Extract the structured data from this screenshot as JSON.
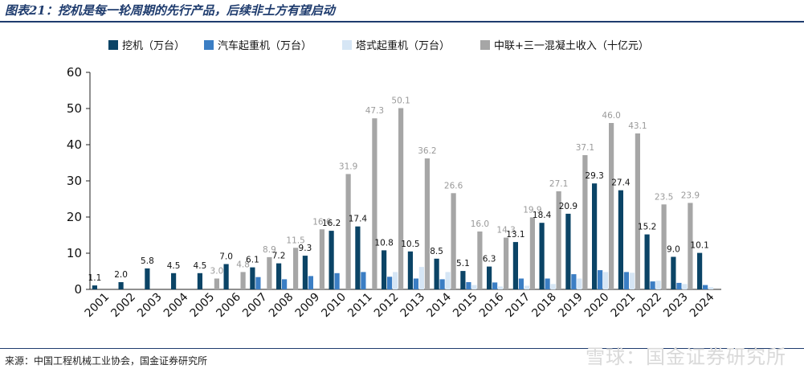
{
  "title": "图表21：挖机是每一轮周期的先行产品，后续非土方有望启动",
  "source": "来源：中国工程机械工业协会，国金证券研究所",
  "watermark": "雪球：国金证券研究所",
  "chart_data": {
    "type": "bar",
    "categories": [
      "2001",
      "2002",
      "2003",
      "2004",
      "2005",
      "2006",
      "2007",
      "2008",
      "2009",
      "2010",
      "2011",
      "2012",
      "2013",
      "2014",
      "2015",
      "2016",
      "2017",
      "2018",
      "2019",
      "2020",
      "2021",
      "2022",
      "2023",
      "2024"
    ],
    "ylim": [
      0,
      60
    ],
    "yticks": [
      0,
      10,
      20,
      30,
      40,
      50,
      60
    ],
    "grid": false,
    "legend_position": "top",
    "series": [
      {
        "name": "挖机（万台）",
        "color": "#0b4466",
        "label_color": "#111111",
        "values": [
          1.1,
          2.0,
          5.8,
          4.5,
          4.5,
          7.0,
          6.1,
          7.2,
          9.3,
          16.2,
          17.4,
          10.8,
          10.5,
          8.5,
          5.1,
          6.3,
          13.1,
          18.4,
          20.9,
          29.3,
          27.4,
          15.2,
          9.0,
          10.1
        ],
        "labels": [
          "1.1",
          "2.0",
          "5.8",
          "4.5",
          "4.5",
          "7.0",
          "6.1",
          "7.2",
          "9.3",
          "16.2",
          "17.4",
          "10.8",
          "10.5",
          "8.5",
          "5.1",
          "6.3",
          "13.1",
          "18.4",
          "20.9",
          "29.3",
          "27.4",
          "15.2",
          "9.0",
          "10.1"
        ]
      },
      {
        "name": "汽车起重机（万台）",
        "color": "#3b7ec4",
        "label_color": null,
        "values": [
          0,
          0,
          0,
          0,
          0,
          0,
          3.4,
          2.8,
          3.7,
          4.5,
          4.8,
          3.5,
          3.0,
          2.8,
          2.0,
          1.9,
          3.0,
          3.0,
          4.2,
          5.3,
          4.8,
          2.2,
          1.8,
          1.2
        ],
        "labels": []
      },
      {
        "name": "塔式起重机（万台）",
        "color": "#d6e6f5",
        "label_color": null,
        "values": [
          0,
          0,
          0,
          0,
          0,
          0,
          0,
          0,
          0,
          0,
          0,
          4.8,
          6.2,
          4.8,
          1.2,
          0.8,
          1.0,
          1.5,
          3.0,
          4.8,
          4.6,
          2.4,
          1.5,
          0.6
        ],
        "labels": []
      },
      {
        "name": "中联+三一混凝土收入（十亿元）",
        "color": "#a6a6a6",
        "label_color": "#9a9a9a",
        "values": [
          0,
          0,
          0,
          0,
          3.0,
          4.8,
          8.9,
          11.5,
          16.6,
          31.9,
          47.3,
          50.1,
          36.2,
          26.6,
          16.0,
          14.3,
          19.9,
          27.1,
          37.1,
          46.0,
          43.1,
          23.5,
          23.9,
          0
        ],
        "labels": [
          "",
          "",
          "",
          "",
          "3.0",
          "4.8",
          "8.9",
          "11.5",
          "16.6",
          "31.9",
          "47.3",
          "50.1",
          "36.2",
          "26.6",
          "16.0",
          "14.3",
          "19.9",
          "27.1",
          "37.1",
          "46.0",
          "43.1",
          "23.5",
          "23.9",
          ""
        ]
      }
    ]
  }
}
